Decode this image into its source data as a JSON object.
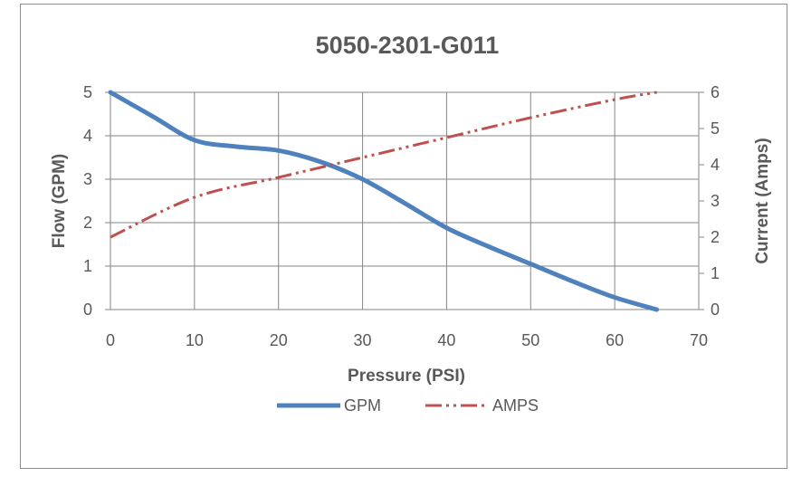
{
  "chart_data": {
    "type": "line",
    "title": "5050-2301-G011",
    "xlabel": "Pressure (PSI)",
    "ylabel": "Flow (GPM)",
    "y2label": "Current (Amps)",
    "xlim": [
      0,
      70
    ],
    "ylim": [
      0,
      5
    ],
    "y2lim": [
      0,
      6
    ],
    "xticks": [
      "0",
      "10",
      "20",
      "30",
      "40",
      "50",
      "60",
      "70"
    ],
    "yticks": [
      "0",
      "1",
      "2",
      "3",
      "4",
      "5"
    ],
    "y2ticks": [
      "0",
      "1",
      "2",
      "3",
      "4",
      "5",
      "6"
    ],
    "grid": true,
    "legend_position": "bottom",
    "series": [
      {
        "name": "GPM",
        "axis": "left",
        "color": "#4f81bd",
        "style": "solid",
        "x": [
          0,
          5,
          10,
          15,
          20,
          25,
          30,
          35,
          40,
          45,
          50,
          55,
          60,
          65
        ],
        "y": [
          5.0,
          4.45,
          3.9,
          3.75,
          3.66,
          3.4,
          3.0,
          2.45,
          1.88,
          1.45,
          1.05,
          0.65,
          0.28,
          0.0
        ]
      },
      {
        "name": "AMPS",
        "axis": "right",
        "color": "#c0504d",
        "style": "dash-dot-dot",
        "x": [
          0,
          10,
          20,
          30,
          40,
          50,
          60,
          65
        ],
        "y": [
          2.0,
          3.1,
          3.65,
          4.2,
          4.75,
          5.3,
          5.8,
          6.0
        ]
      }
    ]
  }
}
